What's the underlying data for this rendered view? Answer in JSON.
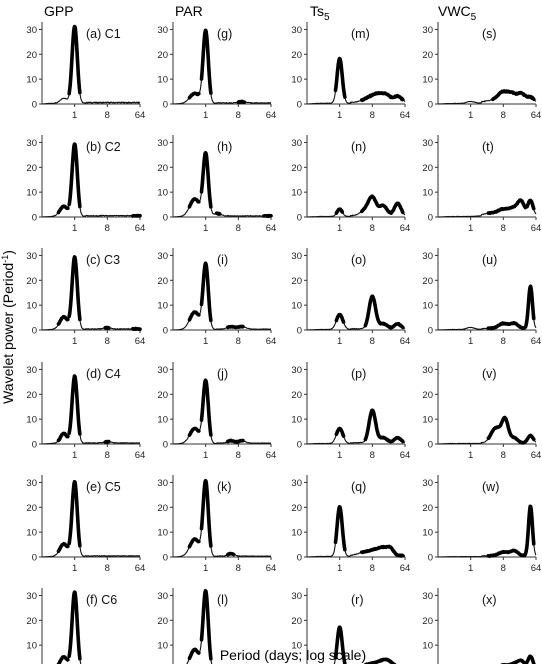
{
  "figure": {
    "ylabel": "Wavelet power (Period",
    "ylabel_sup": "-1",
    "ylabel_end": ")",
    "xlabel": "Period (days; log scale)",
    "columns": [
      {
        "label": "GPP",
        "sub": ""
      },
      {
        "label": "PAR",
        "sub": ""
      },
      {
        "label": "Ts",
        "sub": "5"
      },
      {
        "label": "VWC",
        "sub": "5"
      }
    ]
  },
  "chart_data": {
    "type": "line",
    "x_scale": "log2",
    "xlim": [
      0.125,
      64
    ],
    "ylim": [
      0,
      33
    ],
    "x_ticks": [
      1,
      8,
      64
    ],
    "x_tick_labels": [
      "1",
      "8",
      "64"
    ],
    "y_ticks": [
      0,
      10,
      20,
      30
    ],
    "y_tick_labels": [
      "0",
      "10",
      "20",
      "30"
    ],
    "grid": false,
    "panels": [
      {
        "label": "(a) C1",
        "peaks": [
          [
            0.5,
            0.1,
            2
          ],
          [
            1,
            0.08,
            31
          ]
        ],
        "thick": [
          [
            0.7,
            1.4
          ]
        ],
        "noise": 0.5,
        "tail": 0.3
      },
      {
        "label": "(g)",
        "peaks": [
          [
            0.5,
            0.15,
            4
          ],
          [
            1,
            0.08,
            29
          ],
          [
            10,
            0.12,
            0.5
          ]
        ],
        "thick": [
          [
            0.35,
            0.65
          ],
          [
            0.75,
            1.4
          ],
          [
            8,
            12
          ]
        ],
        "noise": 0.4,
        "tail": 0.2
      },
      {
        "label": "(m)",
        "peaks": [
          [
            1,
            0.08,
            18
          ],
          [
            7,
            0.2,
            2
          ],
          [
            12,
            0.15,
            2.5
          ],
          [
            20,
            0.12,
            2.5
          ],
          [
            40,
            0.12,
            2.5
          ]
        ],
        "thick": [
          [
            0.75,
            1.4
          ],
          [
            4,
            56
          ]
        ],
        "noise": 0.4,
        "tail": 0.5
      },
      {
        "label": "(s)",
        "peaks": [
          [
            1,
            0.12,
            0.8
          ],
          [
            5,
            0.25,
            1
          ],
          [
            8,
            0.15,
            3.5
          ],
          [
            14,
            0.12,
            3
          ],
          [
            25,
            0.12,
            3.5
          ],
          [
            45,
            0.1,
            2
          ]
        ],
        "thick": [
          [
            4,
            56
          ]
        ],
        "noise": 0.3,
        "tail": 0.6
      },
      {
        "label": "(b) C2",
        "peaks": [
          [
            0.5,
            0.12,
            4
          ],
          [
            1,
            0.08,
            29
          ]
        ],
        "thick": [
          [
            0.35,
            0.65
          ],
          [
            0.7,
            1.4
          ],
          [
            40,
            64
          ]
        ],
        "noise": 0.4,
        "tail": 0.3
      },
      {
        "label": "(h)",
        "peaks": [
          [
            0.5,
            0.15,
            7
          ],
          [
            1,
            0.08,
            25
          ],
          [
            2,
            0.12,
            1
          ]
        ],
        "thick": [
          [
            0.35,
            0.65
          ],
          [
            0.75,
            1.4
          ],
          [
            2,
            2.5
          ],
          [
            40,
            64
          ]
        ],
        "noise": 0.4,
        "tail": 0.2
      },
      {
        "label": "(n)",
        "peaks": [
          [
            1,
            0.08,
            3
          ],
          [
            5,
            0.15,
            2
          ],
          [
            8,
            0.12,
            7
          ],
          [
            16,
            0.12,
            4
          ],
          [
            40,
            0.1,
            5
          ]
        ],
        "thick": [
          [
            0.8,
            1.2
          ],
          [
            4,
            56
          ]
        ],
        "noise": 0.3,
        "tail": 0.4
      },
      {
        "label": "(t)",
        "peaks": [
          [
            4,
            0.25,
            1
          ],
          [
            8,
            0.15,
            2
          ],
          [
            16,
            0.15,
            3
          ],
          [
            25,
            0.1,
            5
          ],
          [
            45,
            0.08,
            6
          ]
        ],
        "thick": [
          [
            3,
            56
          ]
        ],
        "noise": 0.3,
        "tail": 0.5
      },
      {
        "label": "(c) C3",
        "peaks": [
          [
            0.5,
            0.12,
            5
          ],
          [
            1,
            0.08,
            29
          ],
          [
            8,
            0.12,
            0.5
          ]
        ],
        "thick": [
          [
            0.35,
            0.65
          ],
          [
            0.7,
            1.4
          ],
          [
            7,
            9
          ],
          [
            40,
            64
          ]
        ],
        "noise": 0.4,
        "tail": 0.2
      },
      {
        "label": "(i)",
        "peaks": [
          [
            0.5,
            0.15,
            7
          ],
          [
            1,
            0.08,
            26
          ],
          [
            5,
            0.12,
            1
          ],
          [
            10,
            0.12,
            1
          ]
        ],
        "thick": [
          [
            0.35,
            0.65
          ],
          [
            0.75,
            1.4
          ],
          [
            4,
            11
          ]
        ],
        "noise": 0.3,
        "tail": 0.2
      },
      {
        "label": "(o)",
        "peaks": [
          [
            1,
            0.1,
            6
          ],
          [
            8,
            0.1,
            13
          ],
          [
            16,
            0.12,
            2
          ],
          [
            40,
            0.1,
            2
          ]
        ],
        "thick": [
          [
            0.8,
            1.3
          ],
          [
            5,
            56
          ]
        ],
        "noise": 0.3,
        "tail": 0.4
      },
      {
        "label": "(u)",
        "peaks": [
          [
            1,
            0.12,
            0.8
          ],
          [
            8,
            0.15,
            2
          ],
          [
            16,
            0.12,
            2
          ],
          [
            45,
            0.06,
            17
          ]
        ],
        "thick": [
          [
            3,
            56
          ]
        ],
        "noise": 0.3,
        "tail": 0.5
      },
      {
        "label": "(d) C4",
        "peaks": [
          [
            0.5,
            0.1,
            4
          ],
          [
            1,
            0.08,
            27
          ],
          [
            8,
            0.1,
            0.5
          ]
        ],
        "thick": [
          [
            0.35,
            0.65
          ],
          [
            0.7,
            1.4
          ],
          [
            7,
            9
          ]
        ],
        "noise": 0.4,
        "tail": 0.2
      },
      {
        "label": "(j)",
        "peaks": [
          [
            0.5,
            0.15,
            6
          ],
          [
            1,
            0.08,
            25
          ],
          [
            5,
            0.1,
            1
          ],
          [
            10,
            0.1,
            1
          ]
        ],
        "thick": [
          [
            0.35,
            0.65
          ],
          [
            0.75,
            1.4
          ],
          [
            4,
            11
          ]
        ],
        "noise": 0.3,
        "tail": 0.2
      },
      {
        "label": "(p)",
        "peaks": [
          [
            1,
            0.1,
            6
          ],
          [
            8,
            0.1,
            13
          ],
          [
            16,
            0.12,
            2
          ],
          [
            40,
            0.1,
            2
          ]
        ],
        "thick": [
          [
            0.8,
            1.3
          ],
          [
            5,
            56
          ]
        ],
        "noise": 0.3,
        "tail": 0.4
      },
      {
        "label": "(v)",
        "peaks": [
          [
            5,
            0.15,
            6
          ],
          [
            9,
            0.1,
            9
          ],
          [
            16,
            0.1,
            2
          ],
          [
            45,
            0.08,
            3
          ]
        ],
        "thick": [
          [
            3,
            56
          ]
        ],
        "noise": 0.3,
        "tail": 0.3
      },
      {
        "label": "(e) C5",
        "peaks": [
          [
            0.5,
            0.12,
            5
          ],
          [
            1,
            0.08,
            30
          ]
        ],
        "thick": [
          [
            0.35,
            0.65
          ],
          [
            0.7,
            1.4
          ]
        ],
        "noise": 0.4,
        "tail": 0.2
      },
      {
        "label": "(k)",
        "peaks": [
          [
            0.5,
            0.15,
            7
          ],
          [
            1,
            0.08,
            30
          ],
          [
            5,
            0.1,
            1
          ]
        ],
        "thick": [
          [
            0.35,
            0.65
          ],
          [
            0.75,
            1.4
          ],
          [
            4,
            6
          ]
        ],
        "noise": 0.3,
        "tail": 0.2
      },
      {
        "label": "(q)",
        "peaks": [
          [
            1,
            0.08,
            20
          ],
          [
            5,
            0.2,
            1.5
          ],
          [
            10,
            0.15,
            2
          ],
          [
            16,
            0.12,
            2.5
          ],
          [
            25,
            0.1,
            3
          ]
        ],
        "thick": [
          [
            0.75,
            1.4
          ],
          [
            4,
            56
          ]
        ],
        "noise": 0.3,
        "tail": 0.4
      },
      {
        "label": "(w)",
        "peaks": [
          [
            8,
            0.15,
            1.5
          ],
          [
            16,
            0.12,
            2
          ],
          [
            45,
            0.06,
            20
          ]
        ],
        "thick": [
          [
            3,
            56
          ]
        ],
        "noise": 0.2,
        "tail": 0.4
      },
      {
        "label": "(f) C6",
        "peaks": [
          [
            0.5,
            0.12,
            5
          ],
          [
            1,
            0.08,
            31
          ]
        ],
        "thick": [
          [
            0.35,
            0.65
          ],
          [
            0.7,
            1.4
          ],
          [
            40,
            64
          ]
        ],
        "noise": 0.4,
        "tail": 0.3
      },
      {
        "label": "(l)",
        "peaks": [
          [
            0.5,
            0.15,
            8
          ],
          [
            1,
            0.08,
            31
          ],
          [
            64,
            0.05,
            0.5
          ]
        ],
        "thick": [
          [
            0.35,
            0.65
          ],
          [
            0.75,
            1.4
          ],
          [
            56,
            64
          ]
        ],
        "noise": 0.3,
        "tail": 0.2
      },
      {
        "label": "(r)",
        "peaks": [
          [
            1,
            0.08,
            17
          ],
          [
            8,
            0.3,
            2
          ],
          [
            20,
            0.2,
            3
          ]
        ],
        "thick": [
          [
            0.75,
            1.4
          ],
          [
            5,
            56
          ]
        ],
        "noise": 0.3,
        "tail": 0.4
      },
      {
        "label": "(x)",
        "peaks": [
          [
            8,
            0.15,
            1.5
          ],
          [
            16,
            0.12,
            2
          ],
          [
            25,
            0.1,
            3
          ],
          [
            45,
            0.08,
            5
          ]
        ],
        "thick": [
          [
            3,
            56
          ]
        ],
        "noise": 0.2,
        "tail": 0.4
      }
    ]
  }
}
